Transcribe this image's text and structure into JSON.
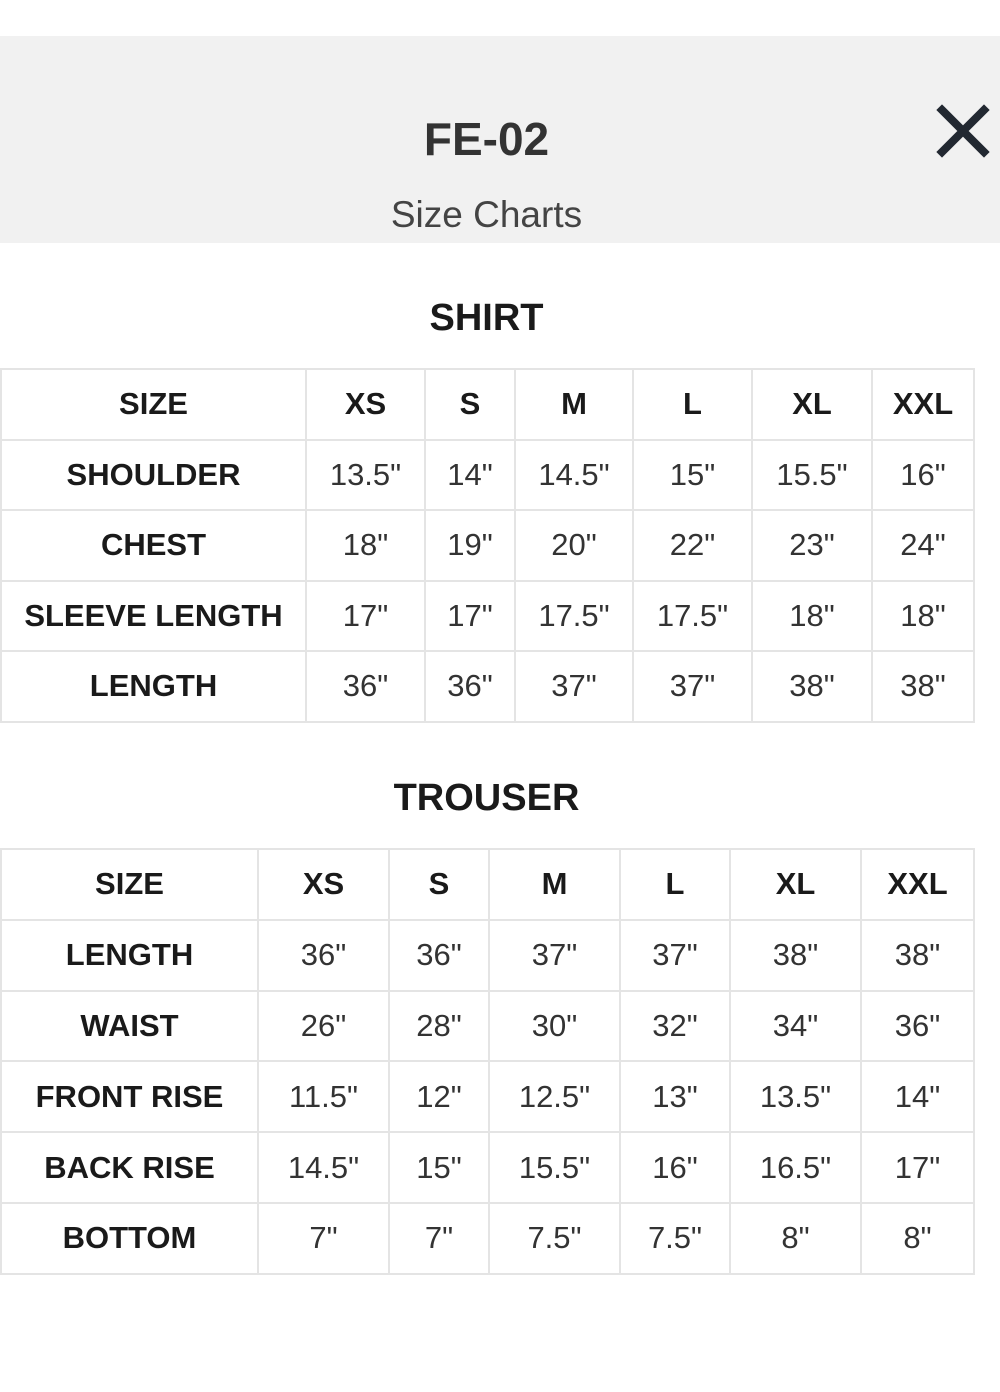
{
  "header": {
    "title": "FE-02",
    "subtitle": "Size Charts",
    "close_icon": "close-icon"
  },
  "shirt": {
    "title": "SHIRT",
    "columns": [
      "SIZE",
      "XS",
      "S",
      "M",
      "L",
      "XL",
      "XXL"
    ],
    "rows": [
      [
        "SHOULDER",
        "13.5\"",
        "14\"",
        "14.5\"",
        "15\"",
        "15.5\"",
        "16\""
      ],
      [
        "CHEST",
        "18\"",
        "19\"",
        "20\"",
        "22\"",
        "23\"",
        "24\""
      ],
      [
        "SLEEVE LENGTH",
        "17\"",
        "17\"",
        "17.5\"",
        "17.5\"",
        "18\"",
        "18\""
      ],
      [
        "LENGTH",
        "36\"",
        "36\"",
        "37\"",
        "37\"",
        "38\"",
        "38\""
      ]
    ]
  },
  "trouser": {
    "title": "TROUSER",
    "columns": [
      "SIZE",
      "XS",
      "S",
      "M",
      "L",
      "XL",
      "XXL"
    ],
    "rows": [
      [
        "LENGTH",
        "36\"",
        "36\"",
        "37\"",
        "37\"",
        "38\"",
        "38\""
      ],
      [
        "WAIST",
        "26\"",
        "28\"",
        "30\"",
        "32\"",
        "34\"",
        "36\""
      ],
      [
        "FRONT RISE",
        "11.5\"",
        "12\"",
        "12.5\"",
        "13\"",
        "13.5\"",
        "14\""
      ],
      [
        "BACK RISE",
        "14.5\"",
        "15\"",
        "15.5\"",
        "16\"",
        "16.5\"",
        "17\""
      ],
      [
        "BOTTOM",
        "7\"",
        "7\"",
        "7.5\"",
        "7.5\"",
        "8\"",
        "8\""
      ]
    ]
  }
}
